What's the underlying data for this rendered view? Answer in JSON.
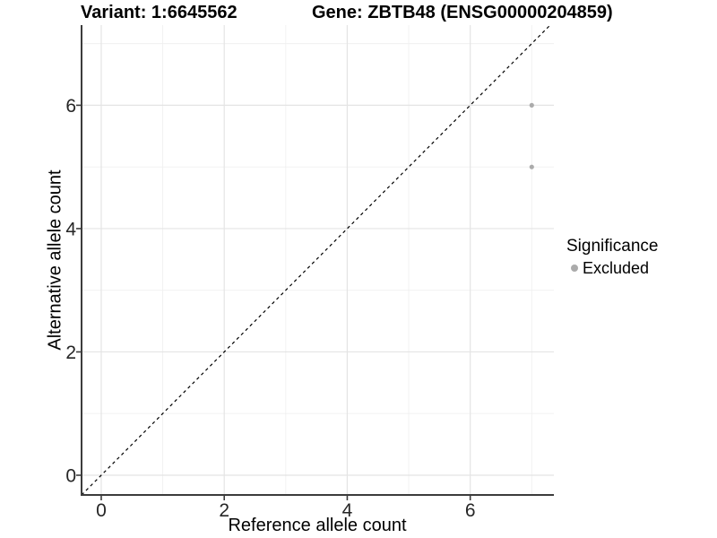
{
  "chart_data": {
    "type": "scatter",
    "titles": [
      "Variant: 1:6645562",
      "Gene: ZBTB48 (ENSG00000204859)"
    ],
    "xlabel": "Reference allele count",
    "ylabel": "Alternative allele count",
    "xlim": [
      -0.32,
      7.36
    ],
    "ylim": [
      -0.32,
      7.3
    ],
    "xticks": [
      0,
      2,
      4,
      6
    ],
    "yticks": [
      0,
      2,
      4,
      6
    ],
    "x_minor": [
      1,
      3,
      5,
      7
    ],
    "y_minor": [
      1,
      3,
      5,
      7
    ],
    "grid": {
      "on": true,
      "major_color": "#e4e4e4",
      "minor_color": "#f0f0f0"
    },
    "identity_line": {
      "type": "y=x",
      "style": "dashed",
      "color": "#000000"
    },
    "series": [
      {
        "name": "Excluded",
        "color": "#ababab",
        "points": [
          [
            7,
            6
          ],
          [
            7,
            5
          ]
        ]
      }
    ],
    "legend": {
      "title": "Significance",
      "position": "right",
      "entries": [
        {
          "label": "Excluded",
          "color": "#ababab"
        }
      ]
    },
    "style": {
      "axis_line_color": "#3c3c3c",
      "tick_color": "#3c3c3c",
      "tick_label_color": "#262626",
      "background": "#ffffff"
    }
  }
}
